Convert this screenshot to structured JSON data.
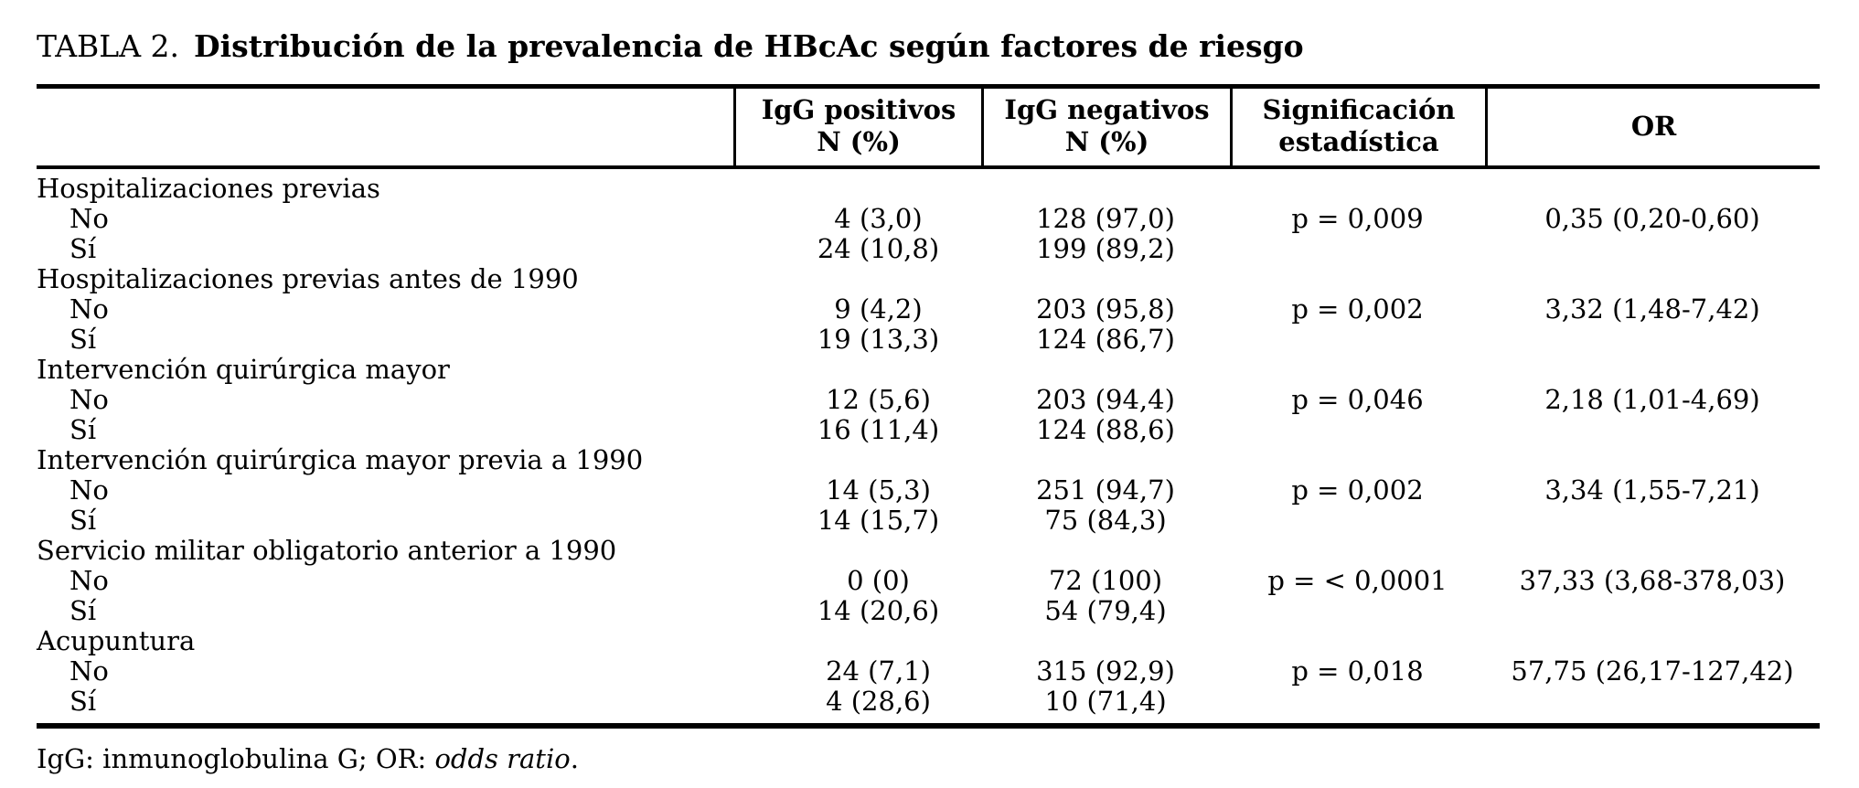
{
  "title": {
    "label": "TABLA 2.",
    "text": "Distribución de la prevalencia de HBcAc según factores de riesgo"
  },
  "table": {
    "columns": [
      {
        "line1": "IgG positivos",
        "line2": "N (%)"
      },
      {
        "line1": "IgG negativos",
        "line2": "N (%)"
      },
      {
        "line1": "Significación",
        "line2": "estadística"
      },
      {
        "line1": "OR",
        "line2": ""
      }
    ],
    "groups": [
      {
        "name": "Hospitalizaciones previas",
        "rows": [
          {
            "label": "No",
            "igg_pos": "4 (3,0)",
            "igg_neg": "128 (97,0)",
            "sig": "p = 0,009",
            "or": "0,35 (0,20-0,60)"
          },
          {
            "label": "Sí",
            "igg_pos": "24 (10,8)",
            "igg_neg": "199 (89,2)",
            "sig": "",
            "or": ""
          }
        ]
      },
      {
        "name": "Hospitalizaciones previas antes de 1990",
        "rows": [
          {
            "label": "No",
            "igg_pos": "9 (4,2)",
            "igg_neg": "203 (95,8)",
            "sig": "p = 0,002",
            "or": "3,32 (1,48-7,42)"
          },
          {
            "label": "Sí",
            "igg_pos": "19 (13,3)",
            "igg_neg": "124 (86,7)",
            "sig": "",
            "or": ""
          }
        ]
      },
      {
        "name": "Intervención quirúrgica mayor",
        "rows": [
          {
            "label": "No",
            "igg_pos": "12 (5,6)",
            "igg_neg": "203 (94,4)",
            "sig": "p = 0,046",
            "or": "2,18 (1,01-4,69)"
          },
          {
            "label": "Sí",
            "igg_pos": "16 (11,4)",
            "igg_neg": "124 (88,6)",
            "sig": "",
            "or": ""
          }
        ]
      },
      {
        "name": "Intervención quirúrgica mayor previa a 1990",
        "rows": [
          {
            "label": "No",
            "igg_pos": "14 (5,3)",
            "igg_neg": "251 (94,7)",
            "sig": "p = 0,002",
            "or": "3,34 (1,55-7,21)"
          },
          {
            "label": "Sí",
            "igg_pos": "14 (15,7)",
            "igg_neg": "75 (84,3)",
            "sig": "",
            "or": ""
          }
        ]
      },
      {
        "name": "Servicio militar obligatorio anterior a 1990",
        "rows": [
          {
            "label": "No",
            "igg_pos": "0 (0)",
            "igg_neg": "72 (100)",
            "sig": "p = < 0,0001",
            "or": "37,33 (3,68-378,03)"
          },
          {
            "label": "Sí",
            "igg_pos": "14 (20,6)",
            "igg_neg": "54 (79,4)",
            "sig": "",
            "or": ""
          }
        ]
      },
      {
        "name": "Acupuntura",
        "rows": [
          {
            "label": "No",
            "igg_pos": "24 (7,1)",
            "igg_neg": "315 (92,9)",
            "sig": "p = 0,018",
            "or": "57,75 (26,17-127,42)"
          },
          {
            "label": "Sí",
            "igg_pos": "4 (28,6)",
            "igg_neg": "10 (71,4)",
            "sig": "",
            "or": ""
          }
        ]
      }
    ]
  },
  "footnote": {
    "prefix": "IgG: inmunoglobulina G; OR: ",
    "italic": "odds ratio",
    "suffix": "."
  }
}
